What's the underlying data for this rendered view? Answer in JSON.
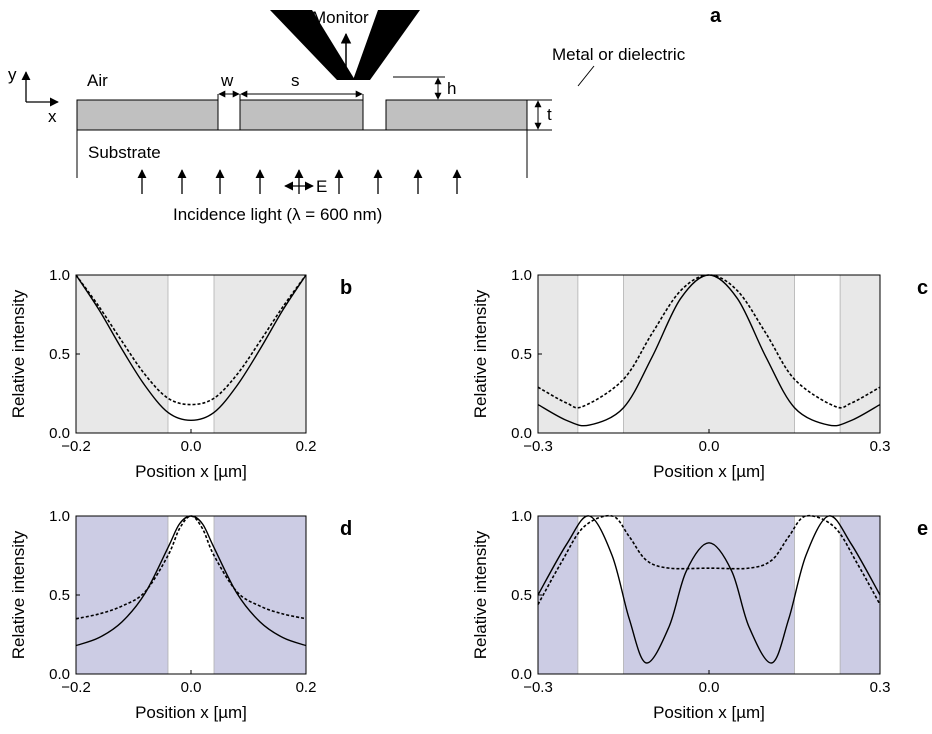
{
  "schematic": {
    "panel_label": "a",
    "monitor_label": "Monitor",
    "material_label": "Metal or dielectric",
    "air_label": "Air",
    "substrate_label": "Substrate",
    "incidence_label": "Incidence light (λ = 600 nm)",
    "axis_y": "y",
    "axis_x": "x",
    "dim_w": "w",
    "dim_s": "s",
    "dim_h": "h",
    "dim_t": "t",
    "field_label": "E"
  },
  "colors": {
    "gray_region": "#e8e8e8",
    "purple_region": "#cccce4",
    "slab": "#c0c0c0",
    "line": "#000000"
  },
  "chart_data": [
    {
      "panel": "b",
      "type": "line",
      "xlabel": "Position x [µm]",
      "ylabel": "Relative intensity",
      "xlim": [
        -0.2,
        0.2
      ],
      "ylim": [
        0,
        1
      ],
      "xticks": [
        "−0.2",
        "0.0",
        "0.2"
      ],
      "yticks": [
        "0.0",
        "0.5",
        "1.0"
      ],
      "shade_color": "gray",
      "slit_regions": [
        [
          -0.04,
          0.04
        ]
      ],
      "series": [
        {
          "style": "solid",
          "x": [
            -0.2,
            -0.16,
            -0.12,
            -0.08,
            -0.04,
            0,
            0.04,
            0.08,
            0.12,
            0.16,
            0.2
          ],
          "y": [
            1.0,
            0.78,
            0.53,
            0.3,
            0.13,
            0.08,
            0.13,
            0.3,
            0.53,
            0.78,
            1.0
          ]
        },
        {
          "style": "dashed",
          "x": [
            -0.2,
            -0.16,
            -0.12,
            -0.08,
            -0.04,
            0,
            0.04,
            0.08,
            0.12,
            0.16,
            0.2
          ],
          "y": [
            1.0,
            0.8,
            0.58,
            0.37,
            0.22,
            0.18,
            0.22,
            0.37,
            0.58,
            0.8,
            1.0
          ]
        }
      ]
    },
    {
      "panel": "c",
      "type": "line",
      "xlabel": "Position x [µm]",
      "ylabel": "Relative intensity",
      "xlim": [
        -0.3,
        0.3
      ],
      "ylim": [
        0,
        1
      ],
      "xticks": [
        "−0.3",
        "0.0",
        "0.3"
      ],
      "yticks": [
        "0.0",
        "0.5",
        "1.0"
      ],
      "shade_color": "gray",
      "slit_regions": [
        [
          -0.23,
          -0.15
        ],
        [
          0.15,
          0.23
        ]
      ],
      "series": [
        {
          "style": "solid",
          "x": [
            -0.3,
            -0.25,
            -0.21,
            -0.15,
            -0.1,
            -0.05,
            0,
            0.05,
            0.1,
            0.15,
            0.21,
            0.25,
            0.3
          ],
          "y": [
            0.18,
            0.08,
            0.05,
            0.16,
            0.48,
            0.85,
            1.0,
            0.85,
            0.48,
            0.16,
            0.05,
            0.08,
            0.18
          ]
        },
        {
          "style": "dashed",
          "x": [
            -0.3,
            -0.25,
            -0.22,
            -0.15,
            -0.1,
            -0.05,
            0,
            0.05,
            0.1,
            0.15,
            0.22,
            0.25,
            0.3
          ],
          "y": [
            0.29,
            0.19,
            0.17,
            0.34,
            0.63,
            0.9,
            1.0,
            0.9,
            0.63,
            0.34,
            0.17,
            0.19,
            0.29
          ]
        }
      ]
    },
    {
      "panel": "d",
      "type": "line",
      "xlabel": "Position x [µm]",
      "ylabel": "Relative intensity",
      "xlim": [
        -0.2,
        0.2
      ],
      "ylim": [
        0,
        1
      ],
      "xticks": [
        "−0.2",
        "0.0",
        "0.2"
      ],
      "yticks": [
        "0.0",
        "0.5",
        "1.0"
      ],
      "shade_color": "purple",
      "slit_regions": [
        [
          -0.04,
          0.04
        ]
      ],
      "series": [
        {
          "style": "solid",
          "x": [
            -0.2,
            -0.16,
            -0.12,
            -0.08,
            -0.04,
            -0.02,
            0,
            0.02,
            0.04,
            0.08,
            0.12,
            0.16,
            0.2
          ],
          "y": [
            0.18,
            0.23,
            0.33,
            0.51,
            0.8,
            0.95,
            1.0,
            0.95,
            0.8,
            0.51,
            0.33,
            0.23,
            0.18
          ]
        },
        {
          "style": "dashed",
          "x": [
            -0.2,
            -0.16,
            -0.12,
            -0.08,
            -0.04,
            -0.02,
            0,
            0.02,
            0.04,
            0.08,
            0.12,
            0.16,
            0.2
          ],
          "y": [
            0.35,
            0.38,
            0.43,
            0.52,
            0.75,
            0.92,
            1.0,
            0.92,
            0.75,
            0.52,
            0.43,
            0.38,
            0.35
          ]
        }
      ]
    },
    {
      "panel": "e",
      "type": "line",
      "xlabel": "Position x [µm]",
      "ylabel": "Relative intensity",
      "xlim": [
        -0.3,
        0.3
      ],
      "ylim": [
        0,
        1
      ],
      "xticks": [
        "−0.3",
        "0.0",
        "0.3"
      ],
      "yticks": [
        "0.0",
        "0.5",
        "1.0"
      ],
      "shade_color": "purple",
      "slit_regions": [
        [
          -0.23,
          -0.15
        ],
        [
          0.15,
          0.23
        ]
      ],
      "series": [
        {
          "style": "solid",
          "x": [
            -0.3,
            -0.25,
            -0.21,
            -0.17,
            -0.14,
            -0.11,
            -0.07,
            -0.04,
            0,
            0.04,
            0.07,
            0.11,
            0.14,
            0.17,
            0.21,
            0.25,
            0.3
          ],
          "y": [
            0.5,
            0.82,
            1.0,
            0.75,
            0.35,
            0.07,
            0.3,
            0.65,
            0.83,
            0.65,
            0.3,
            0.07,
            0.35,
            0.75,
            1.0,
            0.82,
            0.5
          ]
        },
        {
          "style": "dashed",
          "x": [
            -0.3,
            -0.26,
            -0.22,
            -0.17,
            -0.14,
            -0.11,
            -0.07,
            0,
            0.07,
            0.11,
            0.14,
            0.17,
            0.22,
            0.26,
            0.3
          ],
          "y": [
            0.44,
            0.7,
            0.93,
            1.0,
            0.87,
            0.72,
            0.67,
            0.67,
            0.67,
            0.72,
            0.87,
            1.0,
            0.93,
            0.7,
            0.44
          ]
        }
      ]
    }
  ]
}
